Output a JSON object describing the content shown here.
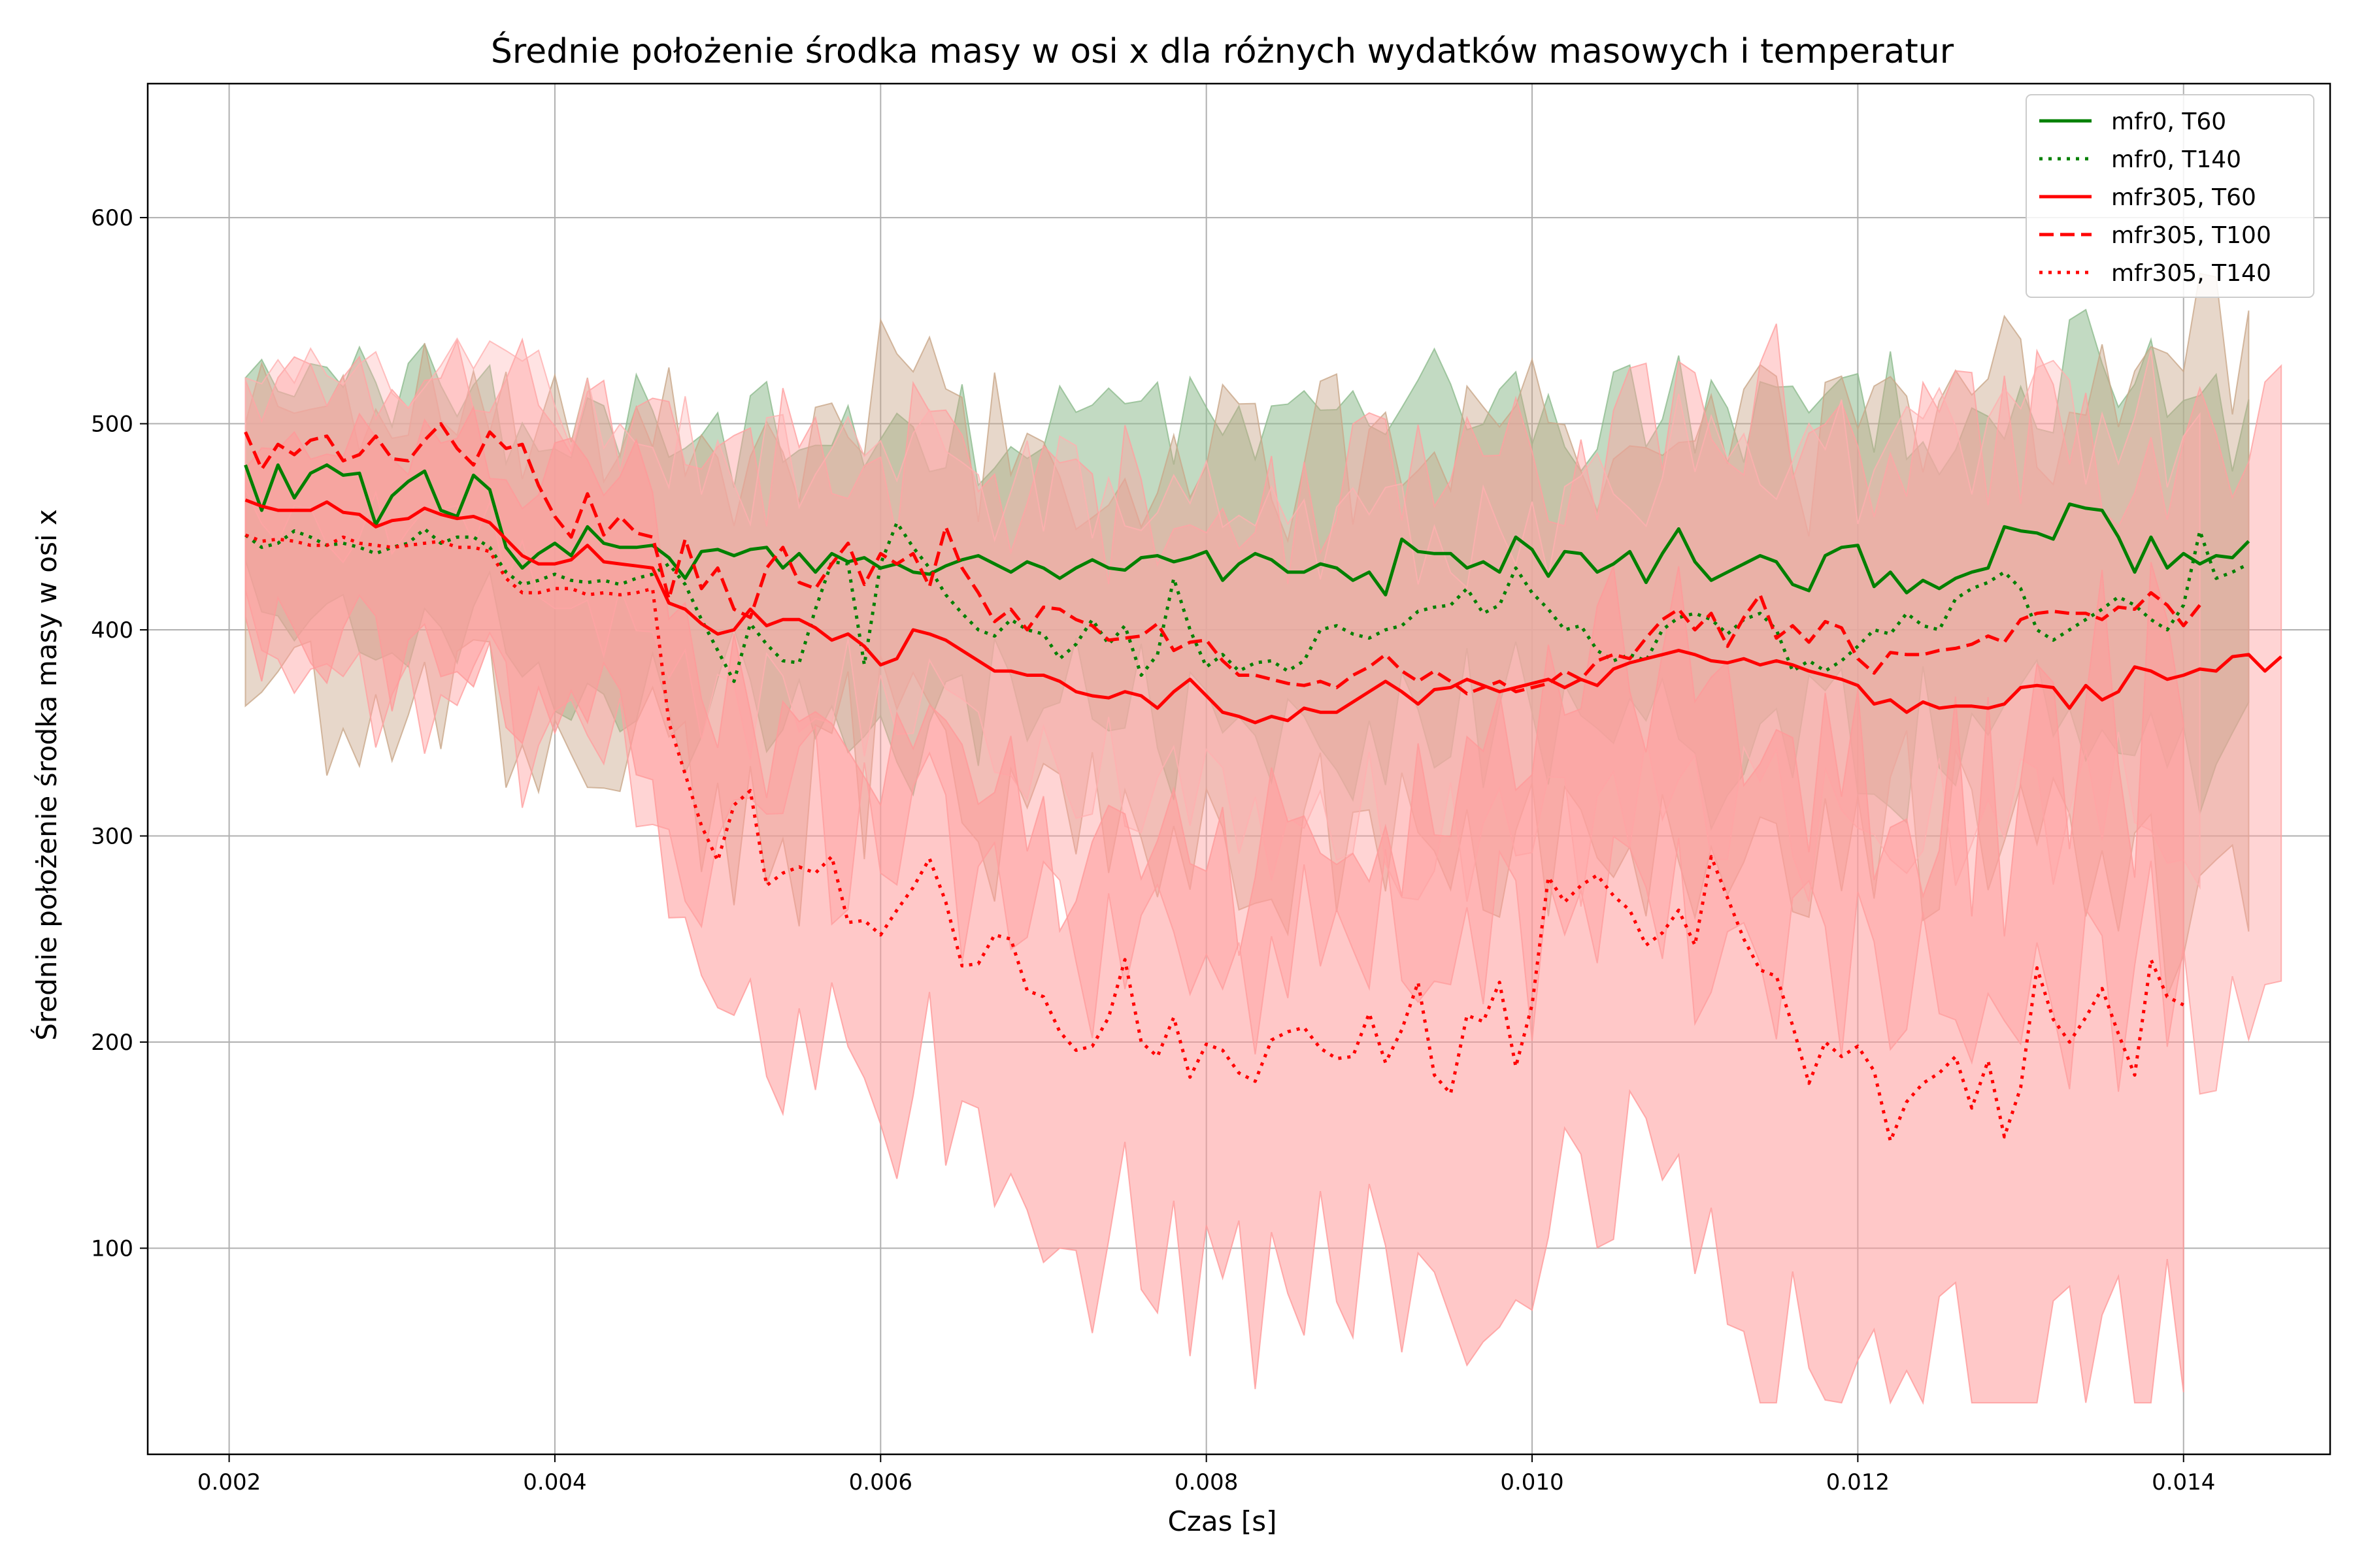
{
  "chart_data": {
    "type": "line",
    "title": "Średnie położenie środka masy w osi x dla różnych wydatków masowych i temperatur",
    "xlabel": "Czas [s]",
    "ylabel": "Średnie położenie środka masy w osi x",
    "xlim": [
      0.0015,
      0.0149
    ],
    "ylim": [
      0,
      665
    ],
    "xticks": [
      0.002,
      0.004,
      0.006,
      0.008,
      0.01,
      0.012,
      0.014
    ],
    "xtick_labels": [
      "0.002",
      "0.004",
      "0.006",
      "0.008",
      "0.010",
      "0.012",
      "0.014"
    ],
    "yticks": [
      100,
      200,
      300,
      400,
      500,
      600
    ],
    "ytick_labels": [
      "100",
      "200",
      "300",
      "400",
      "500",
      "600"
    ],
    "grid": true,
    "legend_position": "top-right",
    "x_start": 0.0021,
    "x_step": 0.0001,
    "bands_note": "",
    "series": [
      {
        "name": "mfr0, T60",
        "color": "#008000",
        "style": "solid",
        "band_color": "#8fbc8f",
        "values": [
          480,
          458,
          480,
          464,
          476,
          480,
          475,
          476,
          451,
          465,
          472,
          477,
          458,
          455,
          475,
          468,
          440,
          430,
          437,
          442,
          436,
          450,
          442,
          440,
          440,
          441,
          435,
          425,
          438,
          439,
          436,
          439,
          440,
          430,
          437,
          428,
          437,
          433,
          435,
          430,
          432,
          428,
          427,
          431,
          434,
          436,
          432,
          428,
          433,
          430,
          425,
          430,
          434,
          430,
          429,
          435,
          436,
          433,
          435,
          438,
          424,
          432,
          437,
          434,
          428,
          428,
          432,
          430,
          424,
          428,
          417,
          444,
          438,
          437,
          437,
          430,
          433,
          428,
          445,
          439,
          426,
          438,
          437,
          428,
          432,
          438,
          423,
          437,
          449,
          433,
          424,
          428,
          432,
          436,
          433,
          422,
          419,
          436,
          440,
          441,
          421,
          428,
          418,
          424,
          420,
          425,
          428,
          430,
          450,
          448,
          447,
          444,
          461,
          459,
          458,
          445,
          428,
          445,
          430,
          437,
          432,
          436,
          435,
          443
        ]
      },
      {
        "name": "mfr0, T140",
        "color": "#008000",
        "style": "dotted",
        "band_color": "#c9a78a",
        "values": [
          446,
          440,
          442,
          448,
          445,
          441,
          442,
          440,
          437,
          440,
          442,
          449,
          442,
          445,
          445,
          440,
          428,
          422,
          424,
          427,
          424,
          423,
          424,
          422,
          425,
          427,
          432,
          422,
          405,
          390,
          375,
          403,
          393,
          385,
          384,
          410,
          433,
          432,
          383,
          432,
          452,
          440,
          430,
          417,
          408,
          400,
          397,
          405,
          400,
          398,
          386,
          393,
          405,
          393,
          402,
          378,
          388,
          425,
          400,
          382,
          388,
          380,
          384,
          385,
          380,
          385,
          400,
          402,
          398,
          396,
          400,
          402,
          409,
          411,
          412,
          420,
          408,
          412,
          430,
          418,
          410,
          400,
          402,
          390,
          385,
          388,
          385,
          400,
          406,
          408,
          405,
          398,
          405,
          408,
          400,
          380,
          385,
          380,
          385,
          392,
          400,
          398,
          408,
          402,
          400,
          415,
          420,
          423,
          428,
          420,
          400,
          395,
          400,
          405,
          410,
          416,
          412,
          405,
          400,
          412,
          448,
          425,
          428,
          432
        ]
      },
      {
        "name": "mfr305, T60",
        "color": "#ff0000",
        "style": "solid",
        "band_color": "#ffa0a0",
        "values": [
          463,
          460,
          458,
          458,
          458,
          462,
          457,
          456,
          450,
          453,
          454,
          459,
          456,
          454,
          455,
          452,
          444,
          436,
          432,
          432,
          434,
          441,
          433,
          432,
          431,
          430,
          413,
          410,
          403,
          398,
          400,
          410,
          402,
          405,
          405,
          401,
          395,
          398,
          392,
          383,
          386,
          400,
          398,
          395,
          390,
          385,
          380,
          380,
          378,
          378,
          375,
          370,
          368,
          367,
          370,
          368,
          362,
          370,
          376,
          368,
          360,
          358,
          355,
          358,
          356,
          362,
          360,
          360,
          365,
          370,
          375,
          370,
          364,
          371,
          372,
          376,
          373,
          370,
          372,
          374,
          376,
          372,
          376,
          373,
          381,
          384,
          386,
          388,
          390,
          388,
          385,
          384,
          386,
          383,
          385,
          383,
          380,
          378,
          376,
          373,
          364,
          366,
          360,
          365,
          362,
          363,
          363,
          362,
          364,
          372,
          373,
          372,
          362,
          373,
          366,
          370,
          382,
          380,
          376,
          378,
          381,
          380,
          387,
          388,
          380,
          387
        ]
      },
      {
        "name": "mfr305, T100",
        "color": "#ff0000",
        "style": "dashed",
        "band_color": "#ffb0b0",
        "values": [
          496,
          478,
          490,
          485,
          492,
          494,
          482,
          485,
          494,
          483,
          482,
          492,
          500,
          488,
          480,
          496,
          488,
          490,
          470,
          455,
          445,
          466,
          446,
          455,
          447,
          445,
          415,
          444,
          420,
          430,
          410,
          406,
          430,
          440,
          423,
          420,
          432,
          442,
          422,
          437,
          432,
          437,
          421,
          450,
          430,
          418,
          404,
          410,
          400,
          411,
          410,
          405,
          402,
          395,
          396,
          397,
          403,
          390,
          394,
          395,
          385,
          378,
          378,
          376,
          374,
          373,
          375,
          372,
          378,
          382,
          388,
          380,
          375,
          380,
          375,
          369,
          372,
          375,
          370,
          372,
          374,
          380,
          376,
          385,
          388,
          386,
          396,
          405,
          410,
          400,
          408,
          392,
          406,
          417,
          396,
          402,
          394,
          404,
          401,
          386,
          379,
          389,
          388,
          388,
          390,
          391,
          393,
          397,
          394,
          405,
          408,
          409,
          408,
          408,
          405,
          411,
          410,
          418,
          412,
          402,
          412
        ]
      },
      {
        "name": "mfr305, T140",
        "color": "#ff0000",
        "style": "dotted",
        "band_color": "#ff9a9a",
        "values": [
          446,
          443,
          444,
          443,
          441,
          441,
          445,
          442,
          441,
          440,
          441,
          442,
          443,
          440,
          440,
          438,
          425,
          418,
          418,
          420,
          420,
          417,
          418,
          417,
          418,
          420,
          355,
          330,
          305,
          288,
          315,
          322,
          276,
          282,
          285,
          282,
          290,
          258,
          259,
          252,
          264,
          275,
          289,
          268,
          237,
          238,
          252,
          250,
          225,
          222,
          205,
          196,
          198,
          212,
          240,
          200,
          193,
          212,
          183,
          199,
          196,
          185,
          181,
          201,
          205,
          207,
          197,
          192,
          193,
          214,
          190,
          206,
          229,
          184,
          175,
          213,
          210,
          229,
          188,
          218,
          280,
          268,
          276,
          281,
          271,
          264,
          247,
          253,
          264,
          247,
          290,
          270,
          250,
          235,
          232,
          208,
          180,
          200,
          193,
          198,
          186,
          152,
          171,
          180,
          185,
          193,
          168,
          191,
          154,
          178,
          236,
          211,
          200,
          212,
          226,
          204,
          184,
          240,
          222,
          218
        ]
      }
    ]
  }
}
